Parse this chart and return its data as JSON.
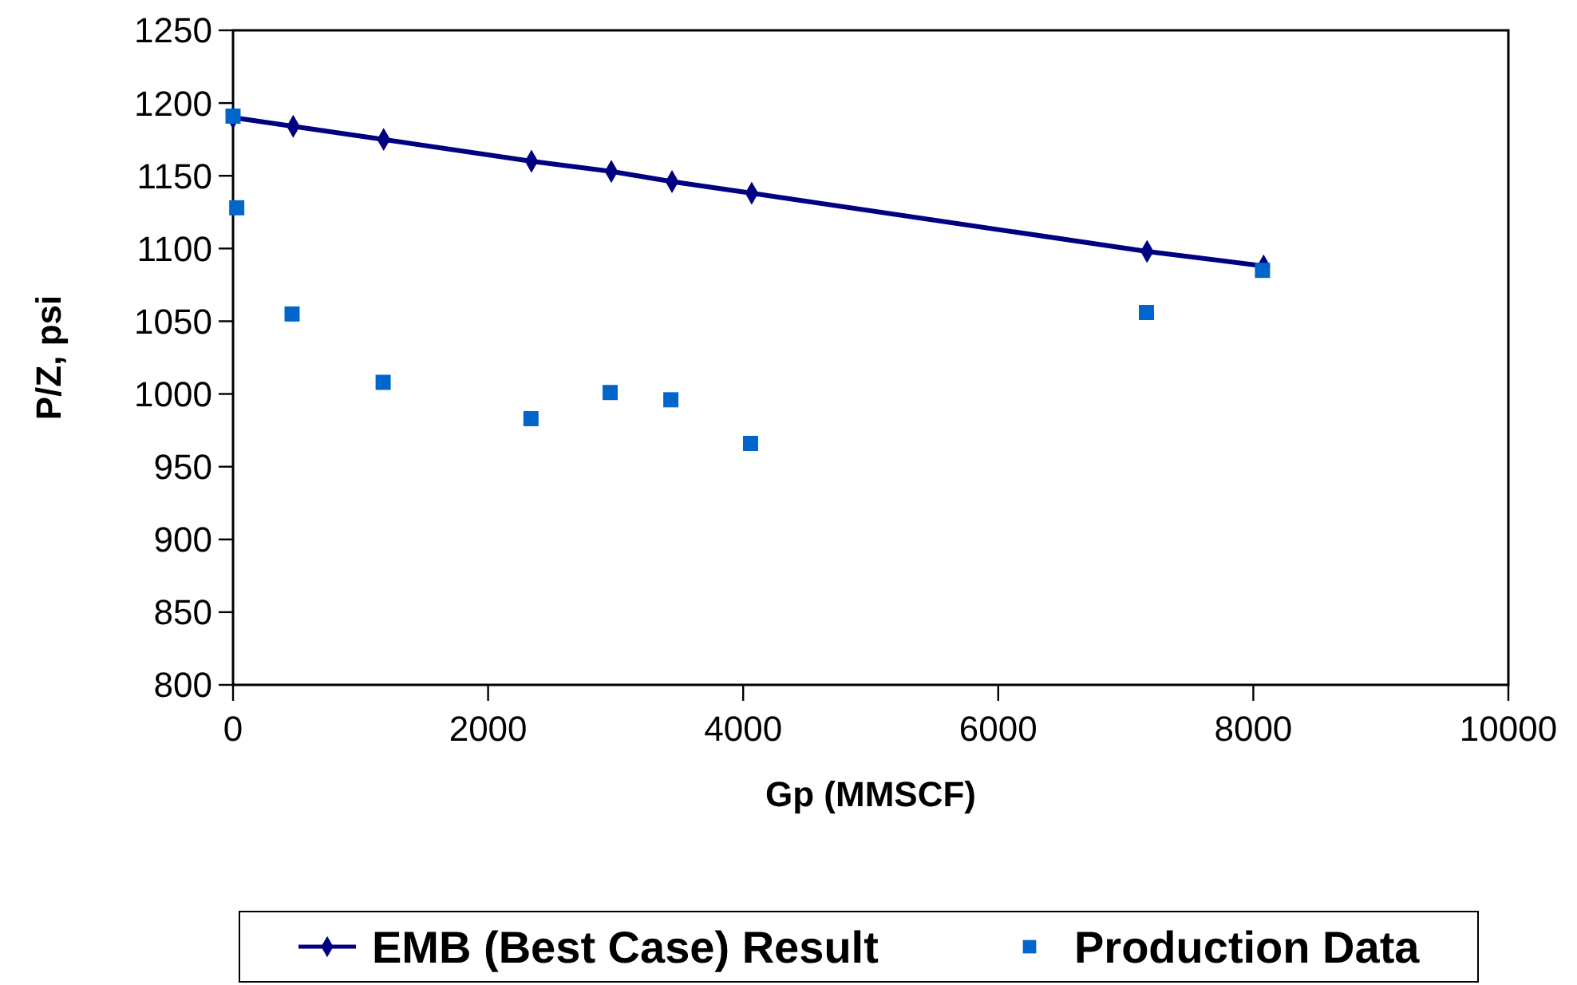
{
  "chart_data": {
    "type": "line",
    "xlabel": "Gp (MMSCF)",
    "ylabel": "P/Z, psi",
    "xlim": [
      0,
      10000
    ],
    "xticks": [
      0,
      2000,
      4000,
      6000,
      8000,
      10000
    ],
    "ylim": [
      800,
      1250
    ],
    "yticks": [
      800,
      850,
      900,
      950,
      1000,
      1050,
      1100,
      1150,
      1200,
      1250
    ],
    "grid": false,
    "legend": "bottom",
    "series": [
      {
        "name": "EMB (Best Case) Result",
        "color": "#000080",
        "marker": "diamond",
        "line_style": "solid",
        "x": [
          0,
          472,
          1181,
          2340,
          2966,
          3442,
          4067,
          7167,
          8081
        ],
        "values": [
          1190,
          1184,
          1175,
          1160,
          1153,
          1146,
          1138,
          1098,
          1088
        ]
      },
      {
        "name": "Production Data",
        "type": "scatter",
        "color": "#0066cc",
        "marker": "square",
        "x": [
          0,
          29,
          463,
          1177,
          2336,
          2957,
          3433,
          4058,
          7162,
          8072
        ],
        "values": [
          1191,
          1128,
          1055,
          1008,
          983,
          1001,
          996,
          966,
          1056,
          1085
        ]
      }
    ]
  }
}
